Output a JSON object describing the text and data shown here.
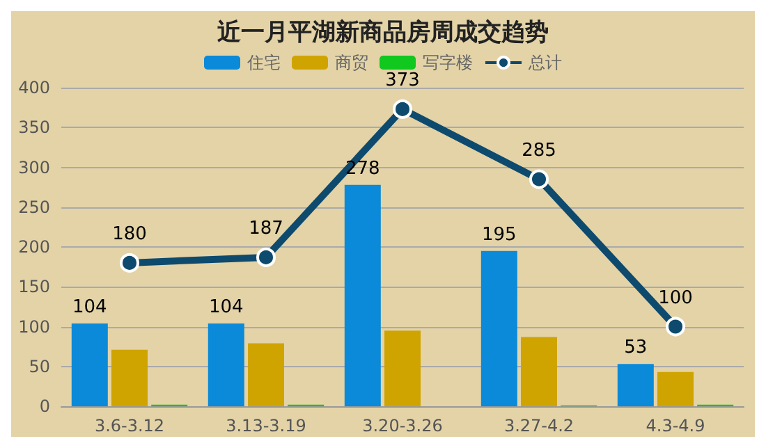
{
  "chart_data": {
    "type": "bar",
    "title": "近一月平湖新商品房周成交趋势",
    "categories": [
      "3.6-3.12",
      "3.13-3.19",
      "3.20-3.26",
      "3.27-4.2",
      "4.3-4.9"
    ],
    "series": [
      {
        "name": "住宅",
        "color": "#0a8ad8",
        "values": [
          104,
          104,
          278,
          195,
          53
        ],
        "value_labels": [
          "104",
          "104",
          "278",
          "195",
          "53"
        ]
      },
      {
        "name": "商贸",
        "color": "#d0a400",
        "values": [
          71,
          79,
          95,
          87,
          43
        ]
      },
      {
        "name": "写字楼",
        "color": "#10c81e",
        "values": [
          2,
          2,
          0,
          1,
          2
        ]
      },
      {
        "name": "总计",
        "type": "line",
        "color": "#0d4a6e",
        "values": [
          180,
          187,
          373,
          285,
          100
        ],
        "value_labels": [
          "180",
          "187",
          "373",
          "285",
          "100"
        ],
        "marker": "circle"
      }
    ],
    "ylim": [
      0,
      400
    ],
    "yticks": [
      0,
      50,
      100,
      150,
      200,
      250,
      300,
      350,
      400
    ],
    "grid": "y",
    "legend": "top"
  }
}
